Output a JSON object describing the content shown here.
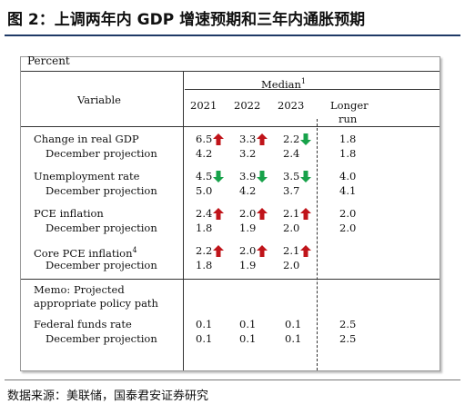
{
  "figure": {
    "title": "图 2：上调两年内 GDP 增速预期和三年内通胀预期",
    "source": "数据来源：美联储，国泰君安证券研究"
  },
  "table": {
    "unit_label": "Percent",
    "variable_header": "Variable",
    "median_header": "Median",
    "median_footnote": "1",
    "years": [
      "2021",
      "2022",
      "2023"
    ],
    "longer_run_line1": "Longer",
    "longer_run_line2": "run",
    "rows": [
      {
        "label": "Change in real GDP",
        "values": [
          "6.5",
          "3.3",
          "2.2"
        ],
        "arrows": [
          "up",
          "up",
          "down"
        ],
        "longer": "1.8",
        "sub_label": "December projection",
        "sub_values": [
          "4.2",
          "3.2",
          "2.4"
        ],
        "sub_longer": "1.8"
      },
      {
        "label": "Unemployment rate",
        "values": [
          "4.5",
          "3.9",
          "3.5"
        ],
        "arrows": [
          "down",
          "down",
          "down"
        ],
        "longer": "4.0",
        "sub_label": "December projection",
        "sub_values": [
          "5.0",
          "4.2",
          "3.7"
        ],
        "sub_longer": "4.1"
      },
      {
        "label": "PCE inflation",
        "values": [
          "2.4",
          "2.0",
          "2.1"
        ],
        "arrows": [
          "up",
          "up",
          "up"
        ],
        "longer": "2.0",
        "sub_label": "December projection",
        "sub_values": [
          "1.8",
          "1.9",
          "2.0"
        ],
        "sub_longer": "2.0"
      },
      {
        "label": "Core PCE inflation",
        "label_footnote": "4",
        "values": [
          "2.2",
          "2.0",
          "2.1"
        ],
        "arrows": [
          "up",
          "up",
          "up"
        ],
        "longer": "",
        "sub_label": "December projection",
        "sub_values": [
          "1.8",
          "1.9",
          "2.0"
        ],
        "sub_longer": ""
      }
    ],
    "memo_line1": "Memo: Projected",
    "memo_line2": "appropriate policy path",
    "fed_funds": {
      "label": "Federal funds rate",
      "values": [
        "0.1",
        "0.1",
        "0.1"
      ],
      "longer": "2.5",
      "sub_label": "December projection",
      "sub_values": [
        "0.1",
        "0.1",
        "0.1"
      ],
      "sub_longer": "2.5"
    }
  },
  "colors": {
    "up_arrow": "#c0141a",
    "down_arrow": "#17a24a",
    "title_rule": "#1f3a66"
  }
}
